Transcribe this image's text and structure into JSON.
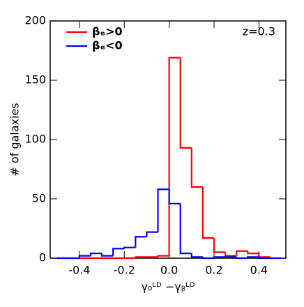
{
  "chart_data": {
    "type": "histogram",
    "xlabel": "γ₀ᴸᴰ −γᵦᴸᴰ",
    "ylabel": "# of galaxies",
    "annotation": "z=0.3",
    "bins": [
      -0.5,
      -0.45,
      -0.4,
      -0.35,
      -0.3,
      -0.25,
      -0.2,
      -0.15,
      -0.1,
      -0.05,
      0,
      0.05,
      0.1,
      0.15,
      0.2,
      0.25,
      0.3,
      0.35,
      0.4,
      0.45,
      0.5
    ],
    "series": [
      {
        "name": "βₑ>0",
        "color": "#ff0000",
        "values": [
          0,
          0,
          0,
          0,
          0,
          0,
          0,
          1,
          1,
          2,
          169,
          93,
          60,
          17,
          5,
          2,
          6,
          4,
          1,
          0
        ]
      },
      {
        "name": "βₑ<0",
        "color": "#0000ff",
        "values": [
          0,
          0,
          2,
          4,
          2,
          8,
          9,
          18,
          22,
          58,
          46,
          4,
          1,
          0,
          1,
          1,
          0,
          1,
          0,
          0
        ]
      }
    ],
    "xlim": [
      -0.53,
      0.52
    ],
    "ylim": [
      0,
      200
    ],
    "xticks": [
      -0.4,
      -0.2,
      {
        "value": 0,
        "label": "0.0"
      },
      0.2,
      0.4
    ],
    "yticks": [
      0,
      50,
      100,
      150,
      200
    ],
    "legend": "upper left"
  }
}
